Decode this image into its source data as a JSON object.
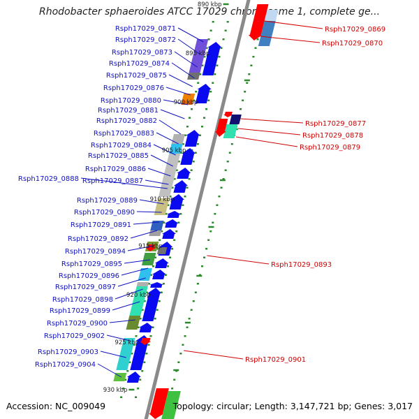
{
  "title": "Rhodobacter sphaeroides ATCC 17029 chromosome 1, complete ge...",
  "footer": {
    "accession": "Accession: NC_009049",
    "stats": "Topology: circular; Length: 3,147,721 bp; Genes: 3,017"
  },
  "colors": {
    "left_labels": "#1010c0",
    "right_labels": "#d00000",
    "backbone": "#8a8a8a",
    "tick": "#2a8a2a",
    "dot": "#2a8a2a",
    "arrow_forward": "#0a0af0",
    "arrow_reverse": "#ff0000"
  },
  "ruler": {
    "labels": [
      "890 kbp",
      "895 kbp",
      "900 kbp",
      "905 kbp",
      "910 kbp",
      "915 kbp",
      "920 kbp",
      "925 kbp",
      "930 kbp"
    ]
  },
  "genes_left_strand_labels": [
    "Rsph17029_0871",
    "Rsph17029_0872",
    "Rsph17029_0873",
    "Rsph17029_0874",
    "Rsph17029_0875",
    "Rsph17029_0876",
    "Rsph17029_0880",
    "Rsph17029_0881",
    "Rsph17029_0882",
    "Rsph17029_0883",
    "Rsph17029_0884",
    "Rsph17029_0885",
    "Rsph17029_0886",
    "Rsph17029_0888",
    "Rsph17029_0887",
    "Rsph17029_0889",
    "Rsph17029_0890",
    "Rsph17029_0891",
    "Rsph17029_0892",
    "Rsph17029_0894",
    "Rsph17029_0895",
    "Rsph17029_0896",
    "Rsph17029_0897",
    "Rsph17029_0898",
    "Rsph17029_0899",
    "Rsph17029_0900",
    "Rsph17029_0902",
    "Rsph17029_0903",
    "Rsph17029_0904"
  ],
  "genes_right_strand_labels": [
    "Rsph17029_0869",
    "Rsph17029_0870",
    "Rsph17029_0877",
    "Rsph17029_0878",
    "Rsph17029_0879",
    "Rsph17029_0893",
    "Rsph17029_0901"
  ]
}
